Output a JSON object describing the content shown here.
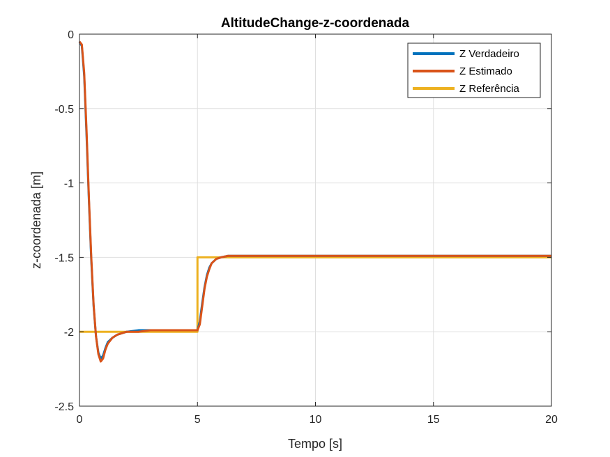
{
  "chart_data": {
    "type": "line",
    "title": "AltitudeChange-z-coordenada",
    "xlabel": "Tempo [s]",
    "ylabel": "z-coordenada [m]",
    "xlim": [
      0,
      20
    ],
    "ylim": [
      -2.5,
      0
    ],
    "xticks": [
      0,
      5,
      10,
      15,
      20
    ],
    "yticks": [
      0,
      -0.5,
      -1,
      -1.5,
      -2,
      -2.5
    ],
    "xtick_labels": [
      "0",
      "5",
      "10",
      "15",
      "20"
    ],
    "ytick_labels": [
      "0",
      "-0.5",
      "-1",
      "-1.5",
      "-2",
      "-2.5"
    ],
    "grid": true,
    "legend_position": "top-right",
    "series": [
      {
        "name": "Z Verdadeiro",
        "color": "#0072BD",
        "x": [
          0,
          0.1,
          0.2,
          0.3,
          0.4,
          0.5,
          0.6,
          0.7,
          0.8,
          0.9,
          1.0,
          1.1,
          1.2,
          1.4,
          1.6,
          1.8,
          2.0,
          2.5,
          3.0,
          4.0,
          5.0,
          5.1,
          5.2,
          5.3,
          5.4,
          5.5,
          5.6,
          5.8,
          6.0,
          6.3,
          6.6,
          7,
          10,
          15,
          20
        ],
        "y": [
          -0.05,
          -0.08,
          -0.28,
          -0.68,
          -1.12,
          -1.52,
          -1.83,
          -2.03,
          -2.14,
          -2.18,
          -2.16,
          -2.11,
          -2.07,
          -2.04,
          -2.02,
          -2.01,
          -2.0,
          -1.99,
          -1.99,
          -1.99,
          -1.99,
          -1.93,
          -1.81,
          -1.7,
          -1.62,
          -1.57,
          -1.54,
          -1.51,
          -1.5,
          -1.49,
          -1.49,
          -1.49,
          -1.49,
          -1.49,
          -1.49
        ]
      },
      {
        "name": "Z Estimado",
        "color": "#D95319",
        "x": [
          0,
          0.1,
          0.2,
          0.3,
          0.4,
          0.5,
          0.6,
          0.7,
          0.8,
          0.9,
          1.0,
          1.1,
          1.2,
          1.4,
          1.6,
          1.8,
          2.0,
          2.5,
          3.0,
          4.0,
          5.0,
          5.1,
          5.2,
          5.3,
          5.4,
          5.5,
          5.6,
          5.8,
          6.0,
          6.3,
          6.6,
          7,
          10,
          15,
          20
        ],
        "y": [
          -0.05,
          -0.07,
          -0.26,
          -0.65,
          -1.1,
          -1.5,
          -1.82,
          -2.03,
          -2.15,
          -2.2,
          -2.18,
          -2.12,
          -2.08,
          -2.04,
          -2.02,
          -2.01,
          -2.0,
          -2.0,
          -1.99,
          -1.99,
          -1.99,
          -1.95,
          -1.83,
          -1.71,
          -1.63,
          -1.58,
          -1.54,
          -1.51,
          -1.5,
          -1.49,
          -1.49,
          -1.49,
          -1.49,
          -1.49,
          -1.49
        ]
      },
      {
        "name": "Z Referência",
        "color": "#EDB120",
        "x": [
          0,
          5,
          5,
          20
        ],
        "y": [
          -2,
          -2,
          -1.5,
          -1.5
        ]
      }
    ]
  }
}
